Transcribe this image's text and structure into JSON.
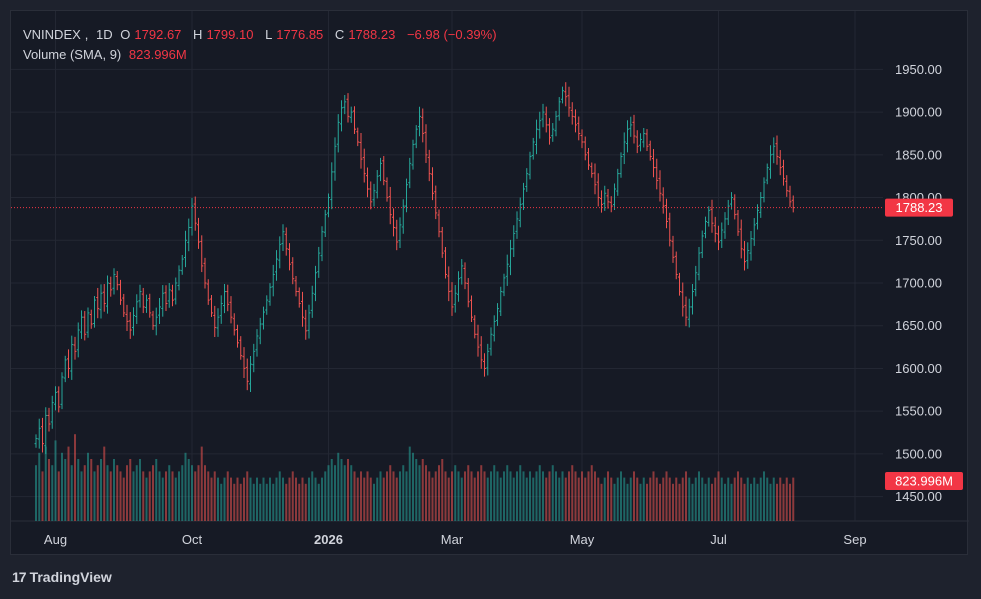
{
  "header": {
    "symbol": "VNINDEX",
    "interval": "1D",
    "open_label": "O",
    "open": "1792.67",
    "high_label": "H",
    "high": "1799.10",
    "low_label": "L",
    "low": "1776.85",
    "close_label": "C",
    "close": "1788.23",
    "change": "−6.98 (−0.39%)",
    "volume_label": "Volume (SMA, 9)",
    "volume_value": "823.996M"
  },
  "branding": {
    "name": "TradingView"
  },
  "colors": {
    "up": "#26a69a",
    "down": "#ef5350",
    "accent": "#f23645",
    "bg": "#161a25",
    "grid": "#232733",
    "text": "#d1d4dc"
  },
  "chart_data": {
    "type": "ohlc",
    "ylim": [
      1425,
      1975
    ],
    "y_ticks": [
      "1450.00",
      "1500.00",
      "1550.00",
      "1600.00",
      "1650.00",
      "1700.00",
      "1750.00",
      "1800.00",
      "1850.00",
      "1900.00",
      "1950.00"
    ],
    "x_ticks": [
      {
        "label": "Aug",
        "index": 6
      },
      {
        "label": "Oct",
        "index": 48
      },
      {
        "label": "2026",
        "index": 90
      },
      {
        "label": "Mar",
        "index": 128
      },
      {
        "label": "May",
        "index": 168
      },
      {
        "label": "Jul",
        "index": 210
      },
      {
        "label": "Sep",
        "index": 252
      }
    ],
    "current_price_label": "1788.23",
    "current_price": 1788.23,
    "volume_label": "823.996M",
    "closes": [
      1518,
      1530,
      1512,
      1545,
      1535,
      1560,
      1572,
      1555,
      1590,
      1610,
      1600,
      1628,
      1620,
      1645,
      1660,
      1640,
      1665,
      1652,
      1680,
      1670,
      1688,
      1676,
      1700,
      1692,
      1710,
      1698,
      1680,
      1665,
      1655,
      1645,
      1662,
      1678,
      1690,
      1672,
      1680,
      1665,
      1650,
      1660,
      1672,
      1688,
      1676,
      1692,
      1680,
      1700,
      1715,
      1728,
      1750,
      1765,
      1790,
      1770,
      1748,
      1720,
      1700,
      1680,
      1665,
      1648,
      1660,
      1676,
      1690,
      1675,
      1660,
      1645,
      1630,
      1615,
      1600,
      1585,
      1605,
      1620,
      1638,
      1652,
      1666,
      1680,
      1695,
      1710,
      1728,
      1745,
      1760,
      1740,
      1722,
      1705,
      1690,
      1676,
      1660,
      1644,
      1665,
      1688,
      1712,
      1735,
      1760,
      1780,
      1800,
      1830,
      1860,
      1888,
      1905,
      1912,
      1895,
      1900,
      1880,
      1865,
      1845,
      1828,
      1810,
      1795,
      1808,
      1825,
      1840,
      1820,
      1800,
      1780,
      1765,
      1748,
      1768,
      1790,
      1815,
      1840,
      1862,
      1880,
      1895,
      1875,
      1850,
      1828,
      1805,
      1782,
      1760,
      1735,
      1710,
      1690,
      1672,
      1688,
      1705,
      1720,
      1700,
      1678,
      1660,
      1640,
      1625,
      1610,
      1600,
      1620,
      1640,
      1655,
      1670,
      1690,
      1706,
      1722,
      1740,
      1758,
      1775,
      1792,
      1810,
      1828,
      1848,
      1865,
      1880,
      1890,
      1900,
      1885,
      1870,
      1880,
      1895,
      1912,
      1925,
      1918,
      1905,
      1895,
      1885,
      1875,
      1865,
      1850,
      1838,
      1828,
      1815,
      1800,
      1792,
      1805,
      1795,
      1790,
      1810,
      1828,
      1848,
      1865,
      1880,
      1885,
      1872,
      1860,
      1868,
      1875,
      1860,
      1848,
      1835,
      1820,
      1805,
      1790,
      1772,
      1750,
      1730,
      1710,
      1690,
      1672,
      1660,
      1672,
      1690,
      1712,
      1735,
      1755,
      1772,
      1785,
      1770,
      1758,
      1748,
      1762,
      1775,
      1790,
      1800,
      1780,
      1760,
      1740,
      1725,
      1738,
      1752,
      1768,
      1785,
      1800,
      1818,
      1835,
      1850,
      1860,
      1848,
      1835,
      1822,
      1808,
      1795,
      1788.23
    ],
    "volumes": [
      0.9,
      1.1,
      0.8,
      1.2,
      1.0,
      0.9,
      1.3,
      0.8,
      1.1,
      1.0,
      1.2,
      0.9,
      1.4,
      1.0,
      0.8,
      0.9,
      1.1,
      1.0,
      0.8,
      0.9,
      1.0,
      1.2,
      0.9,
      0.8,
      1.0,
      0.9,
      0.8,
      0.7,
      0.9,
      1.0,
      0.8,
      0.9,
      1.0,
      0.8,
      0.7,
      0.8,
      0.9,
      1.0,
      0.8,
      0.7,
      0.8,
      0.9,
      0.8,
      0.7,
      0.8,
      0.9,
      1.1,
      1.0,
      0.9,
      0.8,
      0.9,
      1.2,
      0.9,
      0.8,
      0.7,
      0.8,
      0.7,
      0.6,
      0.7,
      0.8,
      0.7,
      0.6,
      0.7,
      0.6,
      0.7,
      0.8,
      0.7,
      0.6,
      0.7,
      0.6,
      0.7,
      0.6,
      0.7,
      0.6,
      0.7,
      0.8,
      0.7,
      0.6,
      0.7,
      0.8,
      0.7,
      0.6,
      0.7,
      0.6,
      0.7,
      0.8,
      0.7,
      0.6,
      0.7,
      0.8,
      0.9,
      1.0,
      0.9,
      1.1,
      1.0,
      0.9,
      1.0,
      0.9,
      0.8,
      0.7,
      0.8,
      0.7,
      0.8,
      0.7,
      0.6,
      0.7,
      0.8,
      0.7,
      0.8,
      0.9,
      0.8,
      0.7,
      0.8,
      0.9,
      0.8,
      1.2,
      1.1,
      1.0,
      0.9,
      1.0,
      0.9,
      0.8,
      0.7,
      0.8,
      0.9,
      1.0,
      0.8,
      0.7,
      0.8,
      0.9,
      0.8,
      0.7,
      0.8,
      0.9,
      0.8,
      0.7,
      0.8,
      0.9,
      0.8,
      0.7,
      0.8,
      0.9,
      0.8,
      0.7,
      0.8,
      0.9,
      0.8,
      0.7,
      0.8,
      0.9,
      0.8,
      0.7,
      0.8,
      0.7,
      0.8,
      0.9,
      0.8,
      0.7,
      0.8,
      0.9,
      0.8,
      0.7,
      0.8,
      0.7,
      0.8,
      0.9,
      0.8,
      0.7,
      0.8,
      0.7,
      0.8,
      0.9,
      0.8,
      0.7,
      0.6,
      0.7,
      0.8,
      0.7,
      0.6,
      0.7,
      0.8,
      0.7,
      0.6,
      0.7,
      0.8,
      0.7,
      0.6,
      0.7,
      0.6,
      0.7,
      0.8,
      0.7,
      0.6,
      0.7,
      0.8,
      0.7,
      0.6,
      0.7,
      0.6,
      0.7,
      0.8,
      0.7,
      0.6,
      0.7,
      0.8,
      0.7,
      0.6,
      0.7,
      0.6,
      0.7,
      0.8,
      0.7,
      0.6,
      0.7,
      0.6,
      0.7,
      0.8,
      0.7,
      0.6,
      0.7,
      0.6,
      0.7,
      0.6,
      0.7,
      0.8,
      0.7,
      0.6,
      0.7,
      0.6,
      0.7,
      0.6,
      0.7,
      0.6,
      0.7,
      0.8,
      0.7,
      0.6,
      0.7,
      0.6,
      0.7,
      0.6,
      0.7,
      0.6,
      0.7,
      0.6,
      0.7,
      0.6,
      0.7,
      0.8,
      0.9
    ]
  }
}
